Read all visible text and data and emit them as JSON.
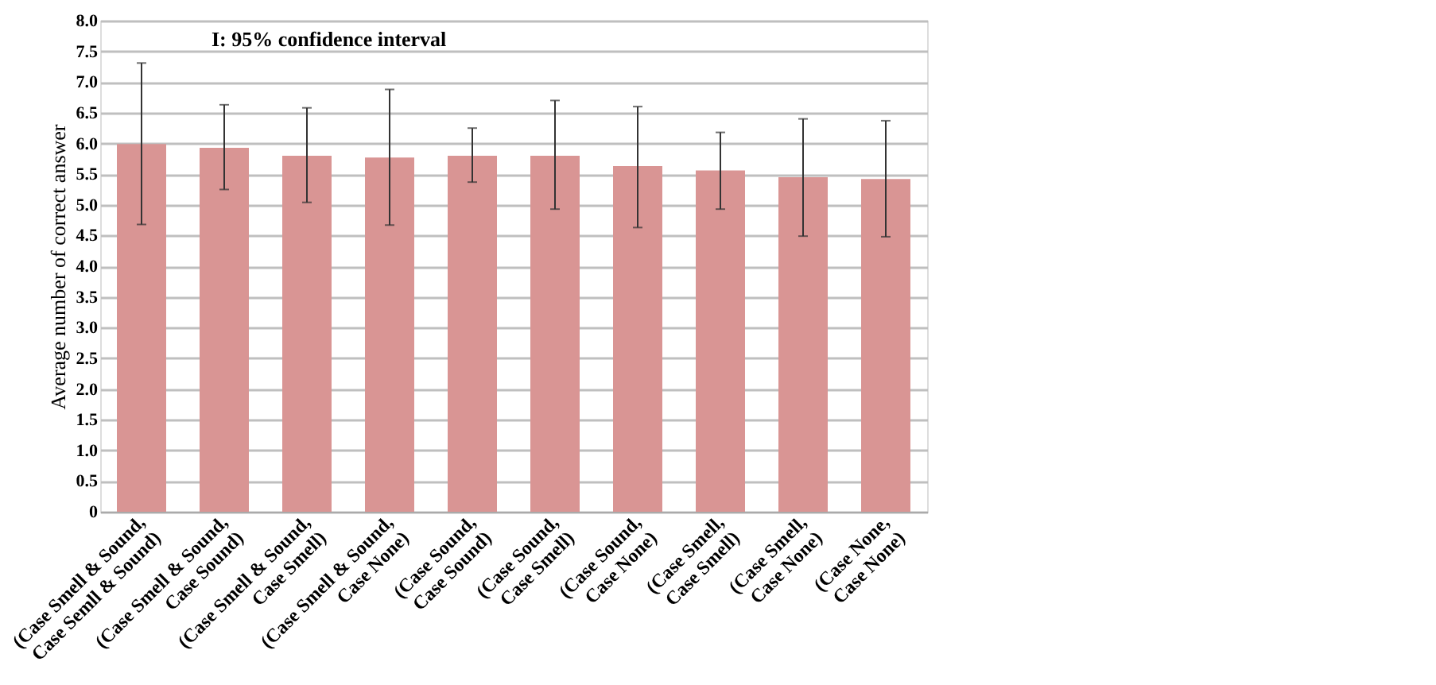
{
  "chart_data": {
    "type": "bar",
    "ylabel": "Average number of correct answer",
    "annotations": [
      "I: 95% confidence interval"
    ],
    "categories": [
      "(Case Smell & Sound, Case Semll & Sound)",
      "(Case Smell & Sound, Case Sound)",
      "(Case Smell & Sound, Case Smell)",
      "(Case Smell & Sound, Case None)",
      "(Case Sound, Case Sound)",
      "(Case Sound, Case Smell)",
      "(Case Sound, Case None)",
      "(Case Smell, Case Smell)",
      "(Case Smell, Case None)",
      "(Case None, Case None)"
    ],
    "values": [
      5.99,
      5.93,
      5.8,
      5.77,
      5.8,
      5.8,
      5.63,
      5.56,
      5.45,
      5.42
    ],
    "errors": [
      [
        4.68,
        7.31
      ],
      [
        5.25,
        6.63
      ],
      [
        5.04,
        6.58
      ],
      [
        4.67,
        6.88
      ],
      [
        5.37,
        6.25
      ],
      [
        4.93,
        6.7
      ],
      [
        4.63,
        6.6
      ],
      [
        4.93,
        6.18
      ],
      [
        4.49,
        6.4
      ],
      [
        4.48,
        6.37
      ]
    ],
    "color": "#d99594",
    "ylim": [
      0,
      8
    ],
    "yticks": [
      {
        "value": 0,
        "label": "0"
      },
      {
        "value": 0.5,
        "label": "0.5"
      },
      {
        "value": 1,
        "label": "1.0"
      },
      {
        "value": 1.5,
        "label": "1.5"
      },
      {
        "value": 2,
        "label": "2.0"
      },
      {
        "value": 2.5,
        "label": "2.5"
      },
      {
        "value": 3,
        "label": "3.0"
      },
      {
        "value": 3.5,
        "label": "3.5"
      },
      {
        "value": 4,
        "label": "4.0"
      },
      {
        "value": 4.5,
        "label": "4.5"
      },
      {
        "value": 5,
        "label": "5.0"
      },
      {
        "value": 5.5,
        "label": "5.5"
      },
      {
        "value": 6,
        "label": "6.0"
      },
      {
        "value": 6.5,
        "label": "6.5"
      },
      {
        "value": 7,
        "label": "7.0"
      },
      {
        "value": 7.5,
        "label": "7.5"
      },
      {
        "value": 8,
        "label": "8.0"
      }
    ],
    "grid": "y"
  }
}
